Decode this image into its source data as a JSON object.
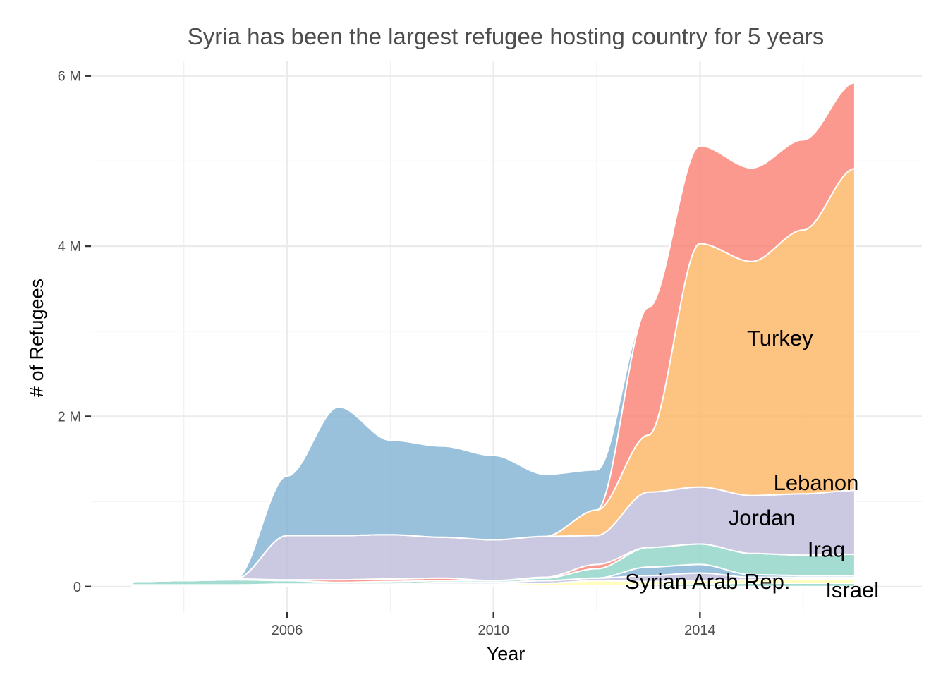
{
  "chart_data": {
    "type": "area",
    "title": "Syria has been the largest refugee hosting country for 5 years",
    "xlabel": "Year",
    "ylabel": "# of Refugees",
    "xlim": [
      2002.2,
      2018.3
    ],
    "ylim": [
      -300000,
      6180000
    ],
    "x_ticks": [
      2006,
      2010,
      2014
    ],
    "x_tick_labels": [
      "2006",
      "2010",
      "2014"
    ],
    "x_minor_ticks": [
      2004,
      2008,
      2012,
      2016
    ],
    "y_ticks": [
      0,
      2000000,
      4000000,
      6000000
    ],
    "y_tick_labels": [
      "0",
      "2 M",
      "4 M",
      "6 M"
    ],
    "y_minor_ticks": [
      1000000,
      3000000,
      5000000
    ],
    "grid": true,
    "legend": "none",
    "stacking": "stacked, smoothed with interpolation between yearly values",
    "x": [
      2003,
      2004,
      2005,
      2006,
      2007,
      2008,
      2009,
      2010,
      2011,
      2012,
      2013,
      2014,
      2015,
      2016,
      2017
    ],
    "series": [
      {
        "name": "Israel",
        "color": "#8DD3C7",
        "values": [
          10000,
          10000,
          10000,
          10000,
          10000,
          10000,
          10000,
          10000,
          10000,
          10000,
          20000,
          30000,
          40000,
          40000,
          40000
        ],
        "label": "Israel"
      },
      {
        "color": "#FFFFB3",
        "values": [
          0,
          0,
          0,
          10000,
          10000,
          10000,
          20000,
          20000,
          30000,
          60000,
          40000,
          40000,
          40000,
          50000,
          50000
        ]
      },
      {
        "color": "#BEBADA",
        "values": [
          10000,
          10000,
          10000,
          10000,
          10000,
          10000,
          20000,
          20000,
          30000,
          30000,
          70000,
          90000,
          30000,
          20000,
          20000
        ]
      },
      {
        "name": "Syrian Arab Rep.",
        "color": "#80B1D3",
        "values": [
          0,
          0,
          0,
          0,
          0,
          0,
          0,
          0,
          0,
          0,
          100000,
          100000,
          30000,
          20000,
          20000
        ],
        "label": "Syrian Arab Rep."
      },
      {
        "name": "Iraq",
        "color": "#8DD3C7",
        "values": [
          40000,
          50000,
          60000,
          40000,
          20000,
          30000,
          20000,
          20000,
          30000,
          110000,
          230000,
          240000,
          250000,
          240000,
          250000
        ],
        "label": "Iraq"
      },
      {
        "color": "#FB8072",
        "values": [
          0,
          0,
          10000,
          10000,
          30000,
          30000,
          30000,
          0,
          10000,
          50000,
          0,
          0,
          0,
          0,
          0
        ]
      },
      {
        "name": "Jordan",
        "color": "#BEBADA",
        "values": [
          0,
          0,
          0,
          520000,
          520000,
          520000,
          480000,
          480000,
          480000,
          340000,
          650000,
          670000,
          680000,
          720000,
          750000
        ],
        "label": "Jordan"
      },
      {
        "name": "Turkey",
        "color": "#FDB462",
        "values": [
          0,
          0,
          0,
          0,
          0,
          0,
          0,
          0,
          0,
          300000,
          670000,
          2860000,
          2750000,
          3100000,
          3780000
        ],
        "label": "Turkey"
      },
      {
        "name": "Lebanon",
        "color": "#FB8072",
        "values": [
          0,
          0,
          0,
          0,
          0,
          0,
          0,
          0,
          0,
          0,
          1500000,
          1150000,
          1100000,
          1060000,
          1010000
        ],
        "label": "Lebanon"
      },
      {
        "color": "#80B1D3",
        "values": [
          0,
          0,
          0,
          700000,
          1510000,
          1110000,
          1070000,
          990000,
          730000,
          470000,
          0,
          0,
          0,
          0,
          0
        ]
      }
    ],
    "annotations": [
      {
        "text": "Turkey",
        "x": 2015.55,
        "y": 2900000
      },
      {
        "text": "Lebanon",
        "x": 2016.25,
        "y": 1200000
      },
      {
        "text": "Jordan",
        "x": 2015.2,
        "y": 790000
      },
      {
        "text": "Iraq",
        "x": 2016.45,
        "y": 420000
      },
      {
        "text": "Syrian Arab Rep.",
        "x": 2014.15,
        "y": 40000
      },
      {
        "text": "Israel",
        "x": 2016.95,
        "y": -60000
      }
    ]
  }
}
